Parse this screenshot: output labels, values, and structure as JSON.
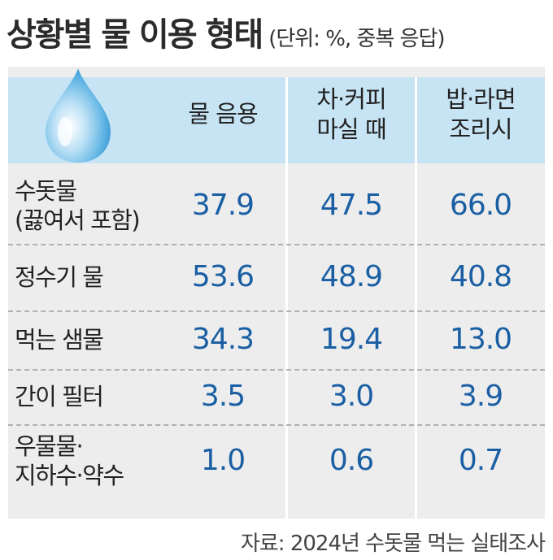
{
  "title": "상황별 물 이용 형태",
  "unit": "(단위: %, 중복 응답)",
  "source": "자료: 2024년 수돗물 먹는 실태조사",
  "colors": {
    "header_band": "#c6e4f4",
    "panel": "#ededed",
    "value_text": "#1a5fa3",
    "drop": "#4fa8dc"
  },
  "icon": "water-drop-icon",
  "chart_data": {
    "type": "table",
    "columns": [
      {
        "lines": [
          "물 음용"
        ]
      },
      {
        "lines": [
          "차·커피",
          "마실 때"
        ]
      },
      {
        "lines": [
          "밥·라면",
          "조리시"
        ]
      }
    ],
    "rows": [
      {
        "lines": [
          "수돗물",
          "(끓여서 포함)"
        ],
        "values": [
          "37.9",
          "47.5",
          "66.0"
        ]
      },
      {
        "lines": [
          "정수기 물"
        ],
        "values": [
          "53.6",
          "48.9",
          "40.8"
        ]
      },
      {
        "lines": [
          "먹는 샘물"
        ],
        "values": [
          "34.3",
          "19.4",
          "13.0"
        ]
      },
      {
        "lines": [
          "간이 필터"
        ],
        "values": [
          "3.5",
          "3.0",
          "3.9"
        ]
      },
      {
        "lines": [
          "우물물·",
          "지하수·약수"
        ],
        "values": [
          "1.0",
          "0.6",
          "0.7"
        ]
      }
    ]
  }
}
